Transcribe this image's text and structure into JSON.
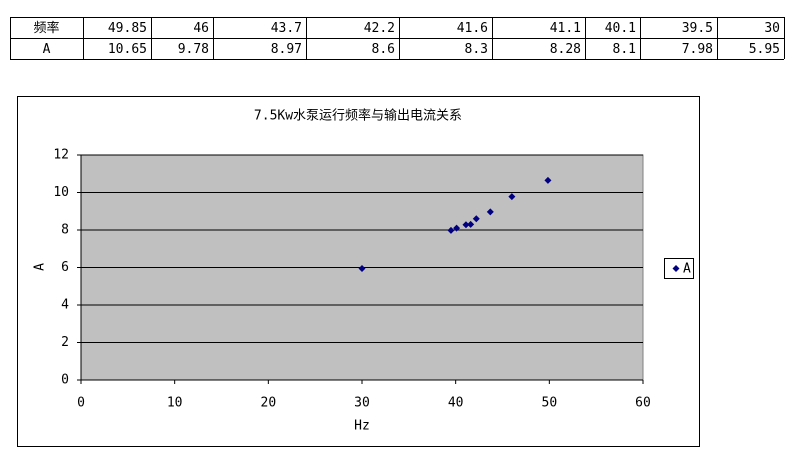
{
  "table": {
    "row_labels": [
      "频率",
      "A"
    ]
  },
  "chart_data": {
    "type": "scatter",
    "title": "7.5Kw水泵运行频率与输出电流关系",
    "x_label": "Hz",
    "y_label": "A",
    "series": [
      {
        "name": "A",
        "color": "#000080",
        "x": [
          49.85,
          46,
          43.7,
          42.2,
          41.6,
          41.1,
          40.1,
          39.5,
          30
        ],
        "values": [
          10.65,
          9.78,
          8.97,
          8.6,
          8.3,
          8.28,
          8.1,
          7.98,
          5.95
        ]
      }
    ],
    "xlim": [
      0,
      60
    ],
    "xticks": [
      0,
      10,
      20,
      30,
      40,
      50,
      60
    ],
    "ylim": [
      0,
      12
    ],
    "yticks": [
      0,
      2,
      4,
      6,
      8,
      10,
      12
    ],
    "grid": true,
    "plot_background": "#c0c0c0",
    "legend": "right"
  }
}
